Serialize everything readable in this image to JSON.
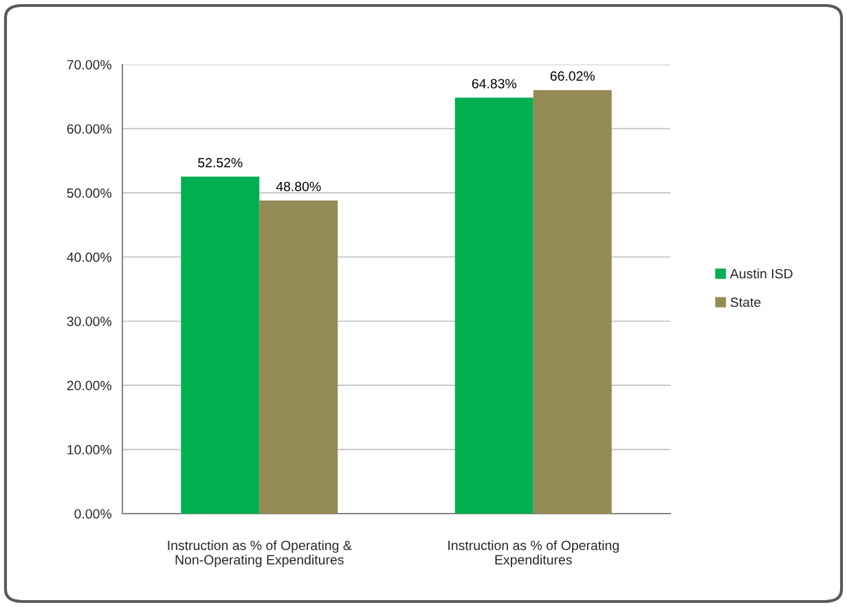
{
  "chart_data": {
    "type": "bar",
    "categories": [
      "Instruction as % of Operating &\nNon-Operating Expenditures",
      "Instruction as % of Operating\nExpenditures"
    ],
    "series": [
      {
        "name": "Austin ISD",
        "color": "#00b050",
        "values": [
          52.52,
          64.83
        ],
        "value_labels": [
          "52.52%",
          "64.83%"
        ]
      },
      {
        "name": "State",
        "color": "#948a54",
        "values": [
          48.8,
          66.02
        ],
        "value_labels": [
          "48.80%",
          "66.02%"
        ]
      }
    ],
    "ylim": [
      0,
      70
    ],
    "yticks": [
      {
        "value": 0,
        "label": "0.00%"
      },
      {
        "value": 10,
        "label": "10.00%"
      },
      {
        "value": 20,
        "label": "20.00%"
      },
      {
        "value": 30,
        "label": "30.00%"
      },
      {
        "value": 40,
        "label": "40.00%"
      },
      {
        "value": 50,
        "label": "50.00%"
      },
      {
        "value": 60,
        "label": "60.00%"
      },
      {
        "value": 70,
        "label": "70.00%"
      }
    ],
    "grid": "y",
    "legend": "right"
  }
}
